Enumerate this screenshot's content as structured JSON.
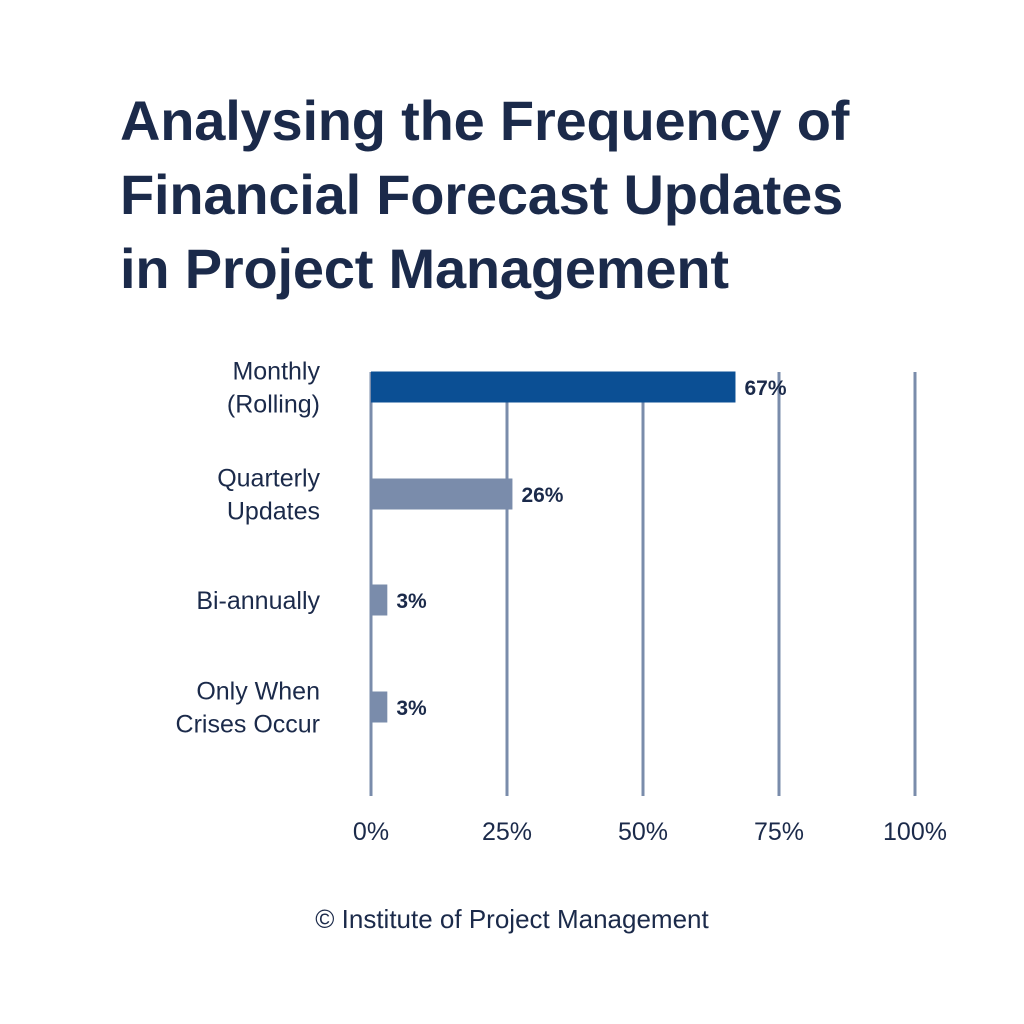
{
  "title_lines": [
    "Analysing the Frequency of",
    "Financial Forecast Updates",
    "in Project Management"
  ],
  "footer": "© Institute of Project Management",
  "colors": {
    "text": "#1b2a4a",
    "highlight_bar": "#0b4f94",
    "bar": "#7a8cab",
    "gridline": "#7a8cab"
  },
  "chart_data": {
    "type": "bar",
    "orientation": "horizontal",
    "title": "Analysing the Frequency of Financial Forecast Updates in Project Management",
    "categories": [
      [
        "Monthly",
        "(Rolling)"
      ],
      [
        "Quarterly",
        "Updates"
      ],
      [
        "Bi-annually"
      ],
      [
        "Only When",
        "Crises Occur"
      ]
    ],
    "values": [
      67,
      26,
      3,
      3
    ],
    "value_labels": [
      "67%",
      "26%",
      "3%",
      "3%"
    ],
    "xlim": [
      0,
      100
    ],
    "ticks": [
      0,
      25,
      50,
      75,
      100
    ],
    "tick_labels": [
      "0%",
      "25%",
      "50%",
      "75%",
      "100%"
    ],
    "grid": true,
    "highlight_index": 0,
    "xlabel": "",
    "ylabel": ""
  }
}
